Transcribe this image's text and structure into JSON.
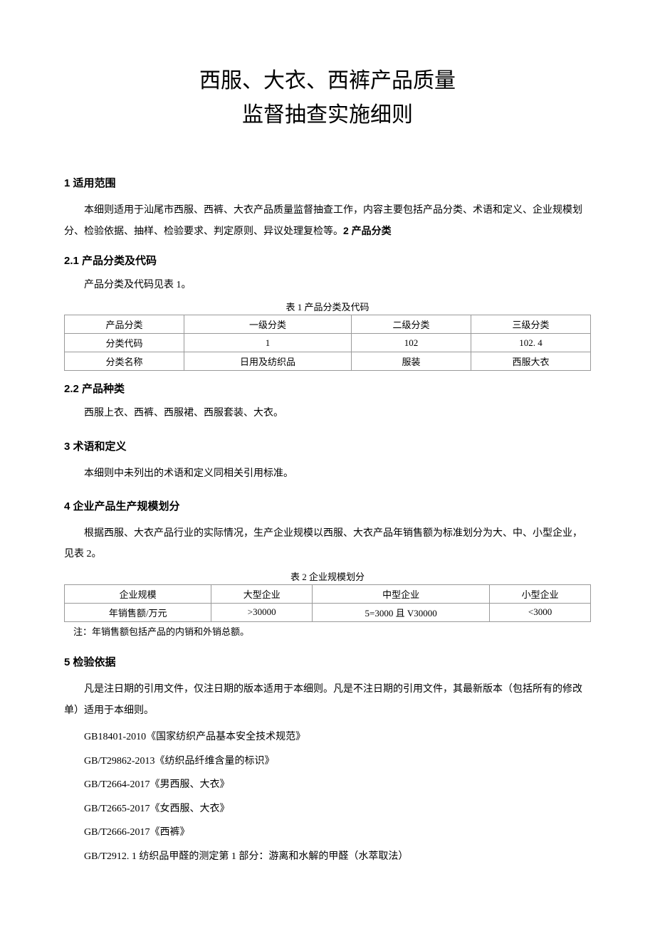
{
  "title_line1": "西服、大衣、西裤产品质量",
  "title_line2": "监督抽查实施细则",
  "s1": {
    "heading": "1 适用范围",
    "para": "本细则适用于汕尾市西服、西裤、大衣产品质量监督抽查工作，内容主要包括产品分类、术语和定义、企业规模划分、检验依据、抽样、检验要求、判定原则、异议处理复检等。",
    "inline_next": "2 产品分类"
  },
  "s21": {
    "heading": "2.1 产品分类及代码",
    "para": "产品分类及代码见表 1。"
  },
  "t1": {
    "caption": "表 1 产品分类及代码",
    "headers": [
      "产品分类",
      "一级分类",
      "二级分类",
      "三级分类"
    ],
    "rows": [
      [
        "分类代码",
        "1",
        "102",
        "102. 4"
      ],
      [
        "分类名称",
        "日用及纺织品",
        "服装",
        "西服大衣"
      ]
    ]
  },
  "s22": {
    "heading": "2.2 产品种类",
    "para": "西服上衣、西裤、西服裙、西服套装、大衣。"
  },
  "s3": {
    "heading": "3 术语和定义",
    "para": "本细则中未列出的术语和定义同相关引用标准。"
  },
  "s4": {
    "heading": "4 企业产品生产规模划分",
    "para": "根据西服、大衣产品行业的实际情况，生产企业规模以西服、大衣产品年销售额为标准划分为大、中、小型企业，见表 2。"
  },
  "t2": {
    "caption": "表 2 企业规模划分",
    "headers": [
      "企业规模",
      "大型企业",
      "中型企业",
      "小型企业"
    ],
    "rows": [
      [
        "年销售额/万元",
        ">30000",
        "5=3000 且 V30000",
        "<3000"
      ]
    ],
    "note": "注：年销售额包括产品的内销和外销总额。"
  },
  "s5": {
    "heading": "5 检验依据",
    "para": "凡是注日期的引用文件，仅注日期的版本适用于本细则。凡是不注日期的引用文件，其最新版本（包括所有的修改单）适用于本细则。",
    "refs": [
      "GB18401-2010《国家纺织产品基本安全技术规范》",
      "GB/T29862-2013《纺织品纤维含量的标识》",
      "GB/T2664-2017《男西服、大衣》",
      "GB/T2665-2017《女西服、大衣》",
      "GB/T2666-2017《西裤》",
      "GB/T2912. 1 纺织品甲醛的测定第 1 部分：游离和水解的甲醛（水萃取法）"
    ]
  }
}
